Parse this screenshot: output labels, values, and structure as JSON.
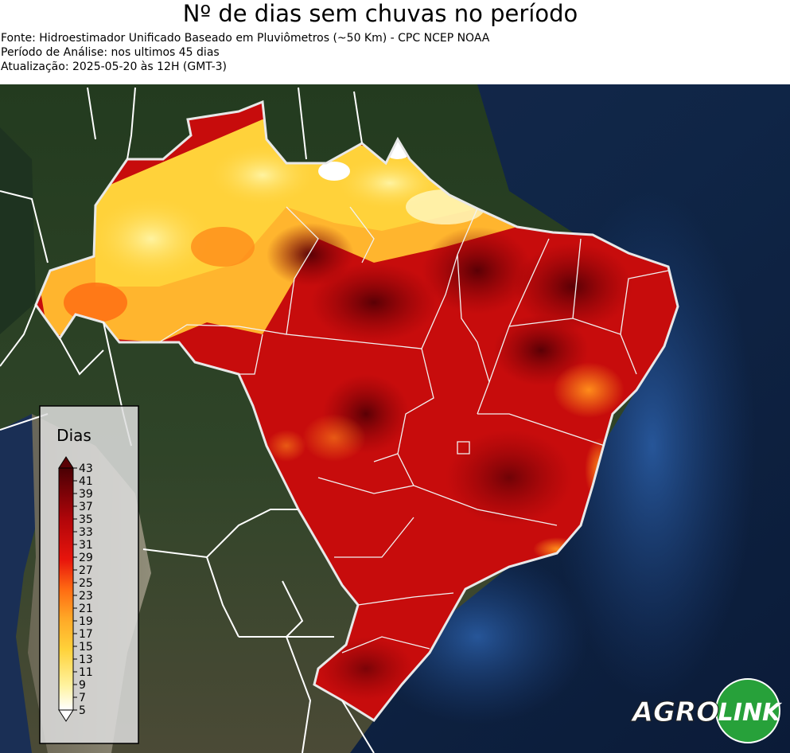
{
  "header": {
    "title": "Nº de dias sem chuvas no período",
    "source": "Fonte: Hidroestimador Unificado Baseado em Pluviômetros (~50 Km) - CPC NCEP NOAA",
    "period": "Período de Análise: nos ultimos 45 dias",
    "updated": "Atualização: 2025-05-20 às 12H (GMT-3)"
  },
  "legend": {
    "title": "Dias",
    "ticks": [
      "43",
      "41",
      "39",
      "37",
      "35",
      "33",
      "31",
      "29",
      "27",
      "25",
      "23",
      "21",
      "19",
      "17",
      "15",
      "13",
      "11",
      "9",
      "7",
      "5"
    ],
    "colors": {
      "low": "#ffffff",
      "light_yellow": "#fff3a0",
      "yellow": "#ffd23a",
      "orange": "#ff8c1a",
      "red": "#e8150c",
      "dark_red": "#9a0509",
      "maroon": "#5a0005"
    }
  },
  "logo": {
    "agro": "AGRO",
    "link": "LINK",
    "circle_color": "#27a13a"
  }
}
